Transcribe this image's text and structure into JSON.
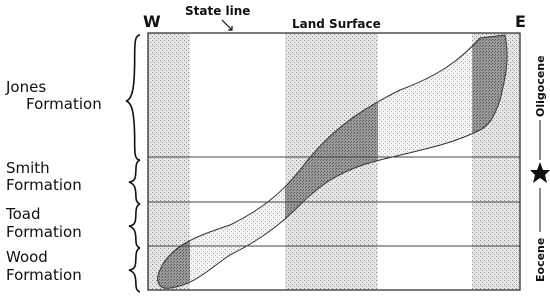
{
  "header": {
    "west": "W",
    "east": "E",
    "state_line": "State line",
    "land_surface": "Land Surface"
  },
  "formations": [
    {
      "lines": [
        "Jones",
        "Formation"
      ]
    },
    {
      "lines": [
        "Smith",
        "Formation"
      ]
    },
    {
      "lines": [
        "Toad",
        "Formation"
      ]
    },
    {
      "lines": [
        "Wood",
        "Formation"
      ]
    }
  ],
  "epochs": {
    "upper": "Oligocene",
    "lower": "Eocene"
  }
}
